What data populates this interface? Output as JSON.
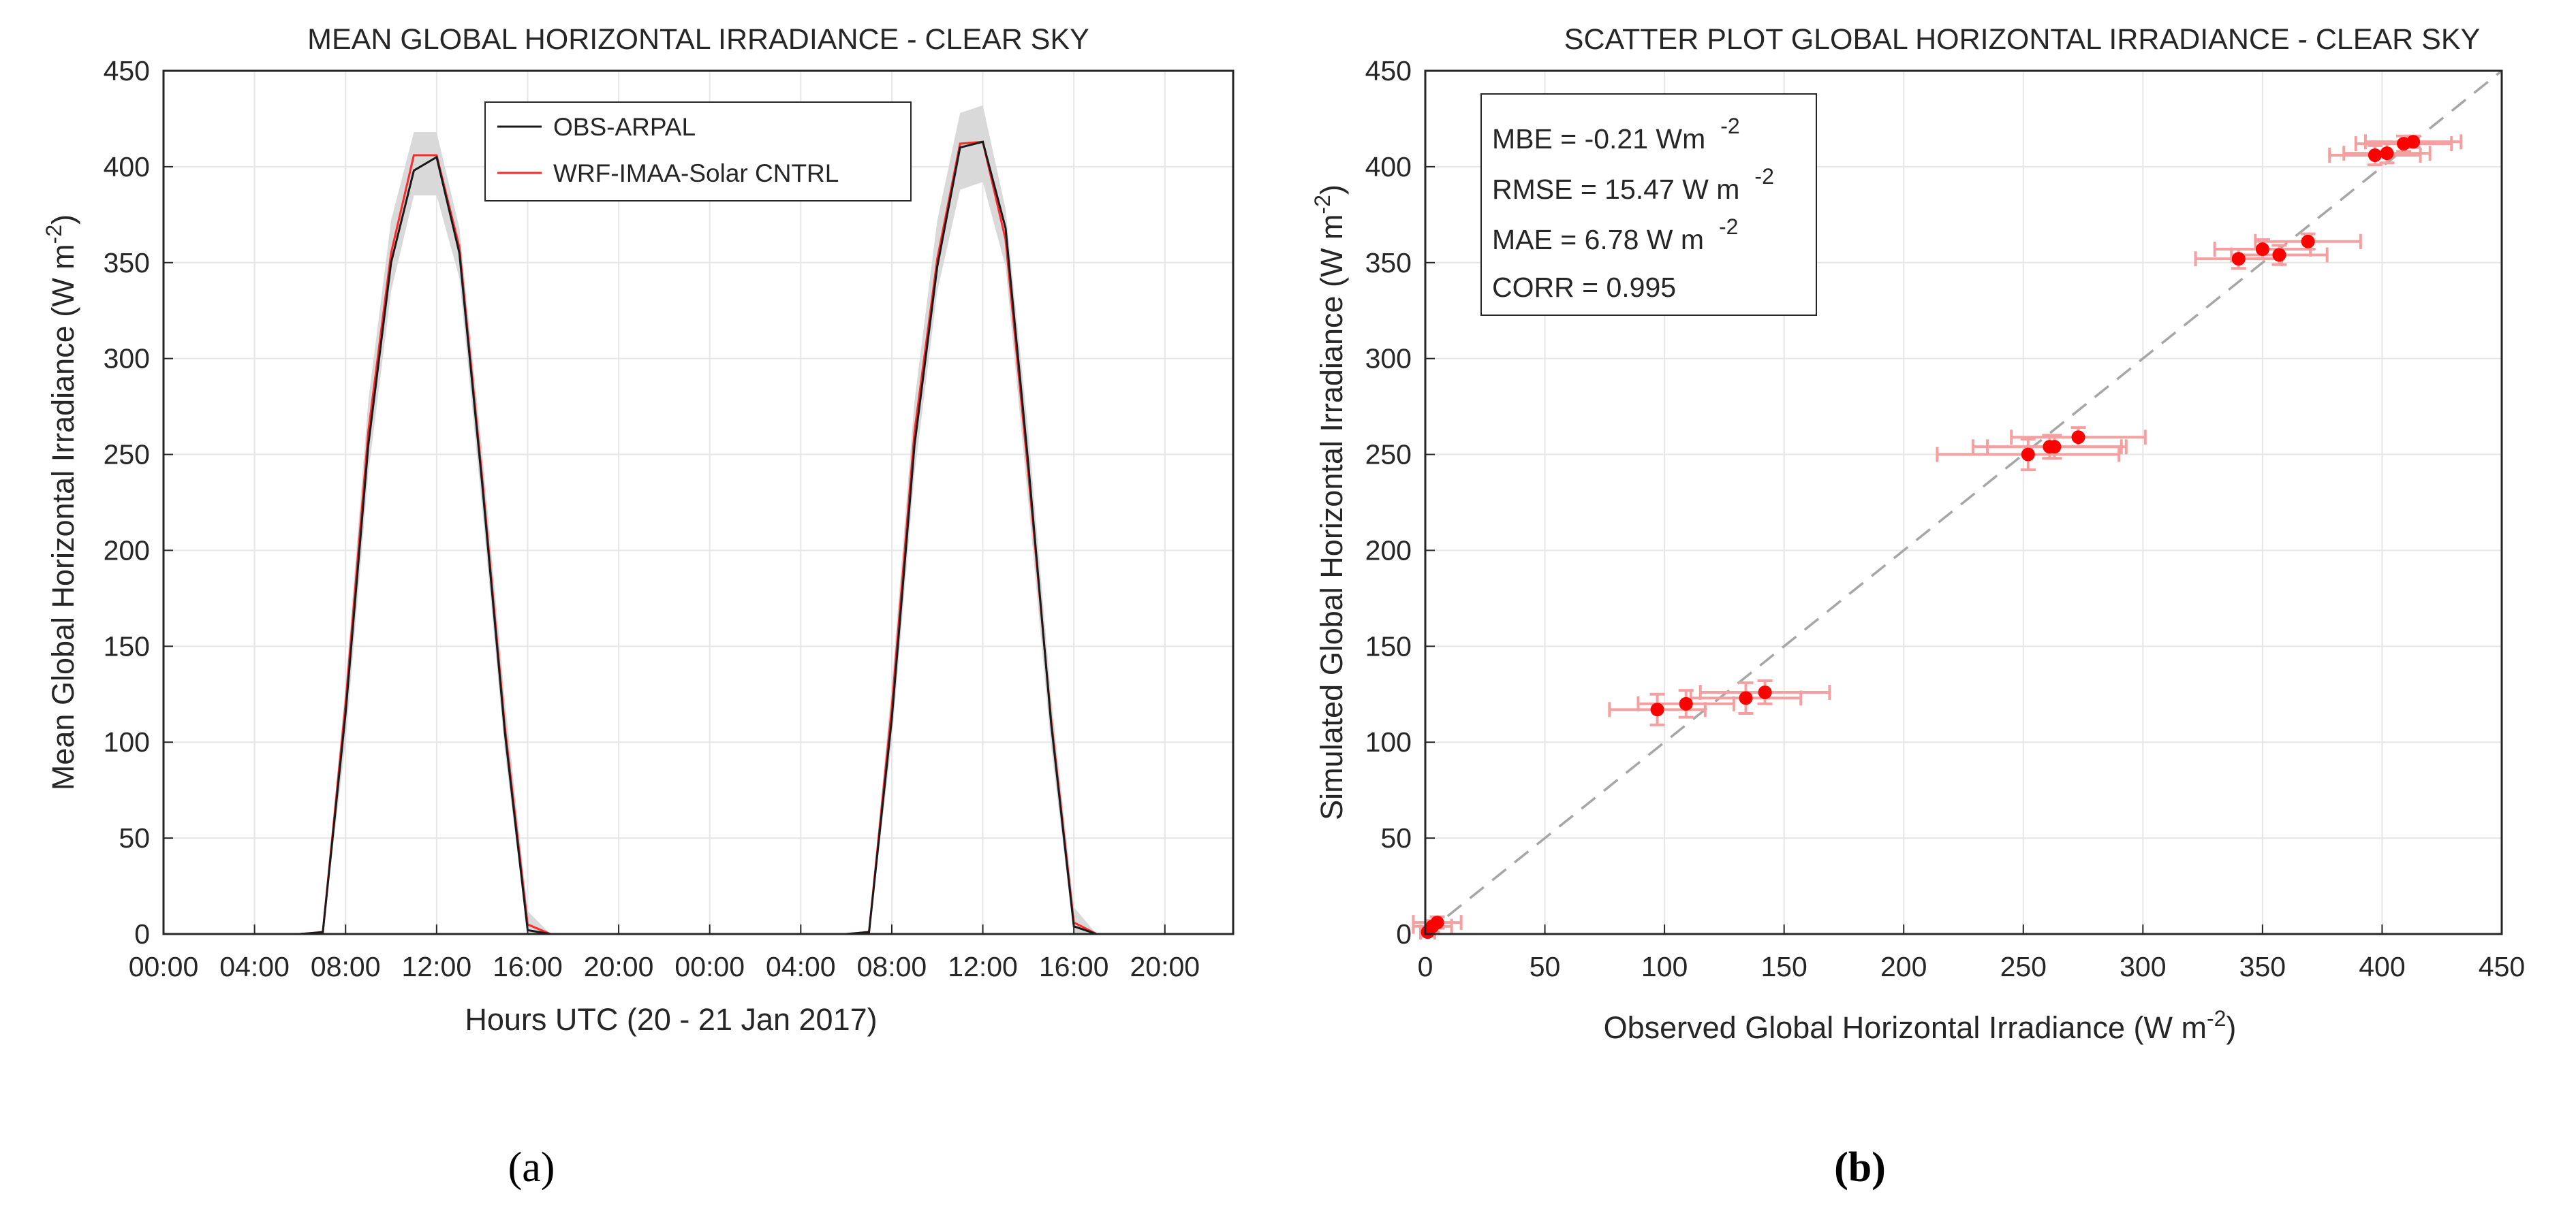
{
  "colors": {
    "obs": "#1a1a1a",
    "model": "#ff2a2a",
    "band": "#d9d9d9",
    "point": "#ff0000",
    "errorbar": "#f4a0a0",
    "diagonal": "#a6a6a6",
    "grid": "#e6e6e6",
    "axis": "#262626"
  },
  "chart_data": [
    {
      "type": "line",
      "panel_label": "(a)",
      "title": "MEAN GLOBAL HORIZONTAL IRRADIANCE - CLEAR SKY",
      "xlabel": "Hours UTC (20 - 21 Jan 2017)",
      "ylabel_main": "Mean Global Horizontal Irradiance (W m",
      "ylabel_sup": "-2",
      "ylabel_close": ")",
      "xlim": [
        0,
        47
      ],
      "ylim": [
        0,
        450
      ],
      "x_ticks": [
        0,
        4,
        8,
        12,
        16,
        20,
        24,
        28,
        32,
        36,
        40,
        44
      ],
      "x_tick_labels": [
        "00:00",
        "04:00",
        "08:00",
        "12:00",
        "16:00",
        "20:00",
        "00:00",
        "04:00",
        "08:00",
        "12:00",
        "16:00",
        "20:00"
      ],
      "y_ticks": [
        0,
        50,
        100,
        150,
        200,
        250,
        300,
        350,
        400,
        450
      ],
      "y_tick_labels": [
        "0",
        "50",
        "100",
        "150",
        "200",
        "250",
        "300",
        "350",
        "400",
        "450"
      ],
      "legend_location": "top-center",
      "x": [
        0,
        1,
        2,
        3,
        4,
        5,
        6,
        7,
        8,
        9,
        10,
        11,
        12,
        13,
        14,
        15,
        16,
        17,
        18,
        19,
        20,
        21,
        22,
        23,
        24,
        25,
        26,
        27,
        28,
        29,
        30,
        31,
        32,
        33,
        34,
        35,
        36,
        37,
        38,
        39,
        40,
        41,
        42,
        43,
        44,
        45,
        46,
        47
      ],
      "series": [
        {
          "name": "OBS-ARPAL",
          "values": [
            0,
            0,
            0,
            0,
            0,
            0,
            0,
            1,
            115,
            255,
            350,
            398,
            405,
            355,
            235,
            105,
            2,
            0,
            0,
            0,
            0,
            0,
            0,
            0,
            0,
            0,
            0,
            0,
            0,
            0,
            0,
            1,
            112,
            255,
            348,
            410,
            413,
            368,
            245,
            110,
            4,
            0,
            0,
            0,
            0,
            0,
            0,
            0
          ]
        },
        {
          "name": "WRF-IMAA-Solar CNTRL",
          "values": [
            0,
            0,
            0,
            0,
            0,
            0,
            0,
            1,
            120,
            262,
            355,
            406,
            406,
            358,
            238,
            108,
            5,
            0,
            0,
            0,
            0,
            0,
            0,
            0,
            0,
            0,
            0,
            0,
            0,
            0,
            0,
            1,
            118,
            262,
            352,
            412,
            413,
            362,
            240,
            112,
            6,
            0,
            0,
            0,
            0,
            0,
            0,
            0
          ]
        }
      ],
      "band_upper": [
        0,
        0,
        0,
        0,
        0,
        0,
        0,
        2,
        130,
        278,
        372,
        418,
        418,
        368,
        252,
        122,
        12,
        0,
        0,
        0,
        0,
        0,
        0,
        0,
        0,
        0,
        0,
        0,
        0,
        0,
        0,
        2,
        130,
        278,
        372,
        428,
        432,
        378,
        262,
        124,
        14,
        0,
        0,
        0,
        0,
        0,
        0,
        0
      ],
      "band_lower": [
        0,
        0,
        0,
        0,
        0,
        0,
        0,
        0,
        100,
        240,
        335,
        385,
        385,
        342,
        222,
        95,
        0,
        0,
        0,
        0,
        0,
        0,
        0,
        0,
        0,
        0,
        0,
        0,
        0,
        0,
        0,
        0,
        100,
        240,
        335,
        388,
        392,
        348,
        225,
        98,
        0,
        0,
        0,
        0,
        0,
        0,
        0,
        0
      ]
    },
    {
      "type": "scatter",
      "panel_label": "(b)",
      "title": "SCATTER PLOT GLOBAL HORIZONTAL IRRADIANCE - CLEAR SKY",
      "xlabel_main": "Observed Global Horizontal Irradiance (W m",
      "xlabel_sup": "-2",
      "xlabel_close": ")",
      "ylabel_main": "Simulated Global Horizontal Irradiance (W m",
      "ylabel_sup": "-2",
      "ylabel_close": ")",
      "xlim": [
        0,
        450
      ],
      "ylim": [
        0,
        450
      ],
      "x_ticks": [
        0,
        50,
        100,
        150,
        200,
        250,
        300,
        350,
        400,
        450
      ],
      "x_tick_labels": [
        "0",
        "50",
        "100",
        "150",
        "200",
        "250",
        "300",
        "350",
        "400",
        "450"
      ],
      "y_ticks": [
        0,
        50,
        100,
        150,
        200,
        250,
        300,
        350,
        400,
        450
      ],
      "y_tick_labels": [
        "0",
        "50",
        "100",
        "150",
        "200",
        "250",
        "300",
        "350",
        "400",
        "450"
      ],
      "stats_location": "top-left",
      "stats": [
        {
          "text": "MBE = -0.21 Wm",
          "sup": "-2"
        },
        {
          "text": "RMSE = 15.47 W m",
          "sup": "-2"
        },
        {
          "text": "MAE = 6.78 W m",
          "sup": "-2"
        },
        {
          "text": "CORR = 0.995",
          "sup": ""
        }
      ],
      "diagonal": [
        [
          0,
          0
        ],
        [
          450,
          450
        ]
      ],
      "points": [
        {
          "x": 1,
          "y": 1,
          "xerr": 3,
          "yerr": 2
        },
        {
          "x": 3,
          "y": 4,
          "xerr": 8,
          "yerr": 3
        },
        {
          "x": 5,
          "y": 6,
          "xerr": 10,
          "yerr": 3
        },
        {
          "x": 97,
          "y": 117,
          "xerr": 20,
          "yerr": 8
        },
        {
          "x": 109,
          "y": 120,
          "xerr": 20,
          "yerr": 7
        },
        {
          "x": 134,
          "y": 123,
          "xerr": 23,
          "yerr": 8
        },
        {
          "x": 142,
          "y": 126,
          "xerr": 27,
          "yerr": 6
        },
        {
          "x": 252,
          "y": 250,
          "xerr": 38,
          "yerr": 8
        },
        {
          "x": 261,
          "y": 254,
          "xerr": 32,
          "yerr": 6
        },
        {
          "x": 263,
          "y": 254,
          "xerr": 28,
          "yerr": 6
        },
        {
          "x": 273,
          "y": 259,
          "xerr": 28,
          "yerr": 5
        },
        {
          "x": 340,
          "y": 352,
          "xerr": 18,
          "yerr": 5
        },
        {
          "x": 350,
          "y": 357,
          "xerr": 20,
          "yerr": 5
        },
        {
          "x": 357,
          "y": 354,
          "xerr": 20,
          "yerr": 5
        },
        {
          "x": 369,
          "y": 361,
          "xerr": 22,
          "yerr": 4
        },
        {
          "x": 397,
          "y": 406,
          "xerr": 19,
          "yerr": 5
        },
        {
          "x": 402,
          "y": 407,
          "xerr": 18,
          "yerr": 5
        },
        {
          "x": 409,
          "y": 412,
          "xerr": 20,
          "yerr": 4
        },
        {
          "x": 413,
          "y": 413,
          "xerr": 20,
          "yerr": 3
        }
      ]
    }
  ]
}
